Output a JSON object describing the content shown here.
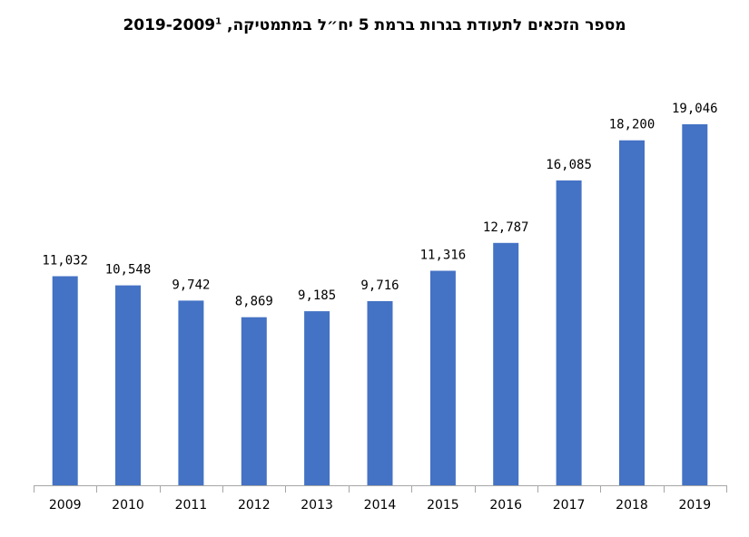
{
  "chart_data": {
    "type": "bar",
    "title": "מספר הזכאים לתעודת בגרות ברמת 5 יח״ל במתמטיקה, 2019-2009",
    "title_footnote": "1",
    "categories": [
      "2009",
      "2010",
      "2011",
      "2012",
      "2013",
      "2014",
      "2015",
      "2016",
      "2017",
      "2018",
      "2019"
    ],
    "values": [
      11032,
      10548,
      9742,
      8869,
      9185,
      9716,
      11316,
      12787,
      16085,
      18200,
      19046
    ],
    "value_labels": [
      "11,032",
      "10,548",
      "9,742",
      "8,869",
      "9,185",
      "9,716",
      "11,316",
      "12,787",
      "16,085",
      "18,200",
      "19,046"
    ],
    "ylim": [
      0,
      21000
    ],
    "grid": false,
    "legend": "none",
    "colors": {
      "bar": "#4472C4",
      "axis": "#A6A6A6",
      "text": "#000000"
    }
  }
}
